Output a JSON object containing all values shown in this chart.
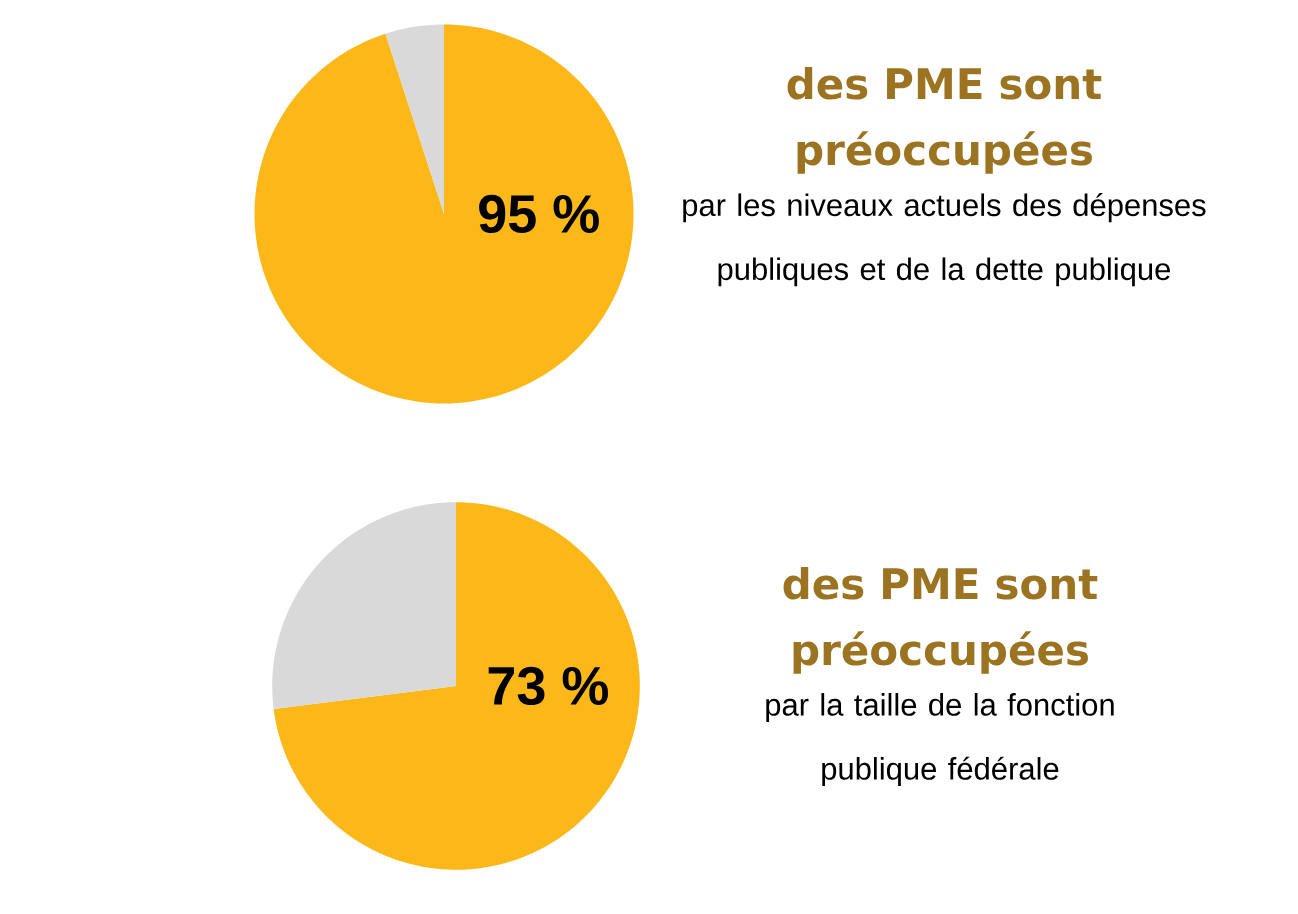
{
  "chart_data": [
    {
      "type": "pie",
      "title": "des PME sont préoccupées",
      "subtitle": "par les niveaux actuels des dépenses publiques et de la dette publique",
      "categories": [
        null,
        null
      ],
      "values": [
        95,
        5
      ],
      "colors": [
        "#fbb818",
        "#d9d9d9"
      ],
      "value_labels": [
        "95 %",
        null
      ]
    },
    {
      "type": "pie",
      "title": "des PME sont préoccupées",
      "subtitle": "par la taille de la fonction publique fédérale",
      "categories": [
        null,
        null
      ],
      "values": [
        73,
        27
      ],
      "colors": [
        "#fbb818",
        "#d9d9d9"
      ],
      "value_labels": [
        "73 %",
        null
      ]
    }
  ]
}
